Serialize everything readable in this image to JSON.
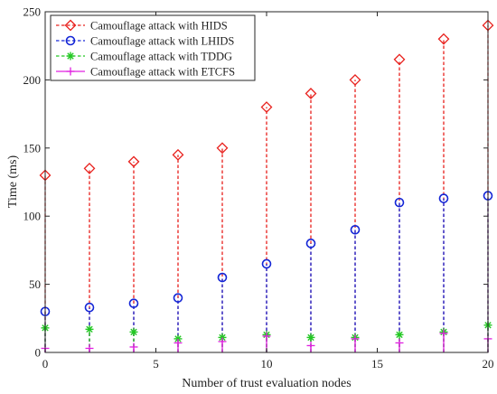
{
  "chart_data": {
    "type": "scatter",
    "style": "stem",
    "title": "",
    "xlabel": "Number of trust evaluation nodes",
    "ylabel": "Time (ms)",
    "xlim": [
      0,
      20
    ],
    "ylim": [
      0,
      250
    ],
    "xticks": [
      0,
      5,
      10,
      15,
      20
    ],
    "yticks": [
      0,
      50,
      100,
      150,
      200,
      250
    ],
    "grid": false,
    "legend_position": "top-left",
    "x": [
      0,
      2,
      4,
      6,
      8,
      10,
      12,
      14,
      16,
      18,
      20
    ],
    "series": [
      {
        "name": "Camouflage attack with HIDS",
        "color": "#e8201c",
        "marker": "diamond",
        "line": "dashed",
        "values": [
          130,
          135,
          140,
          145,
          150,
          180,
          190,
          200,
          215,
          230,
          240
        ]
      },
      {
        "name": "Camouflage attack with LHIDS",
        "color": "#1426d6",
        "marker": "circle",
        "line": "dashed",
        "values": [
          30,
          33,
          36,
          40,
          55,
          65,
          80,
          90,
          110,
          113,
          115
        ]
      },
      {
        "name": "Camouflage attack with TDDG",
        "color": "#22c822",
        "marker": "asterisk",
        "line": "dashed",
        "values": [
          18,
          17,
          15,
          10,
          11,
          13,
          11,
          11,
          13,
          15,
          20
        ]
      },
      {
        "name": "Camouflage attack with ETCFS",
        "color": "#e020e0",
        "marker": "plus",
        "line": "solid",
        "values": [
          3,
          3,
          4,
          7,
          8,
          12,
          5,
          10,
          7,
          14,
          10
        ]
      }
    ]
  }
}
